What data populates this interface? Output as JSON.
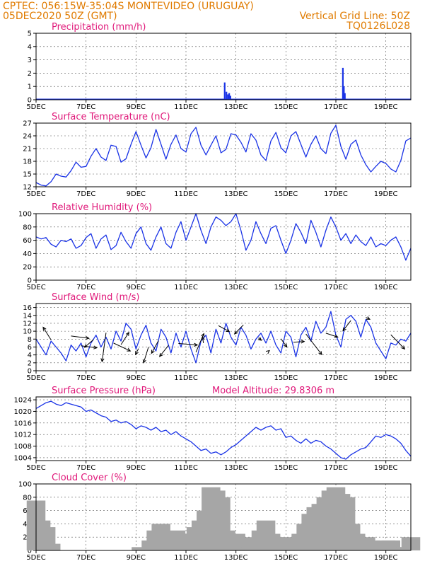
{
  "header": {
    "line1_left": "CPTEC:   056:15W-35:04S   MONTEVIDEO (URUGUAY)",
    "line2_left": "05DEC2020 50Z (GMT)",
    "line2_right": "Vertical Grid Line: 50Z",
    "line3_right": "TQ0126L028"
  },
  "colors": {
    "header": "#e07b00",
    "title": "#e0197a",
    "line": "#1a33e6",
    "bar": "#1a33e6",
    "cloud": "#a6a6a6"
  },
  "chart_data": [
    {
      "type": "bar",
      "title": "Precipitation (mm/h)",
      "ylim": [
        0,
        5
      ],
      "yticks": [
        0,
        1,
        2,
        3,
        4,
        5
      ],
      "x": [
        12.55,
        12.62,
        12.68,
        12.73,
        12.78,
        17.28,
        17.32,
        17.36
      ],
      "values": [
        1.3,
        0.6,
        0.4,
        0.5,
        0.3,
        2.4,
        1.0,
        0.5
      ]
    },
    {
      "type": "line",
      "title": "Surface Temperature (nC)",
      "ylim": [
        12,
        27
      ],
      "yticks": [
        12,
        15,
        18,
        21,
        24,
        27
      ],
      "x": [
        5.0,
        5.2,
        5.4,
        5.6,
        5.8,
        6.0,
        6.2,
        6.4,
        6.6,
        6.8,
        7.0,
        7.2,
        7.4,
        7.6,
        7.8,
        8.0,
        8.2,
        8.4,
        8.6,
        8.8,
        9.0,
        9.2,
        9.4,
        9.6,
        9.8,
        10.0,
        10.2,
        10.4,
        10.6,
        10.8,
        11.0,
        11.2,
        11.4,
        11.6,
        11.8,
        12.0,
        12.2,
        12.4,
        12.6,
        12.8,
        13.0,
        13.2,
        13.4,
        13.6,
        13.8,
        14.0,
        14.2,
        14.4,
        14.6,
        14.8,
        15.0,
        15.2,
        15.4,
        15.6,
        15.8,
        16.0,
        16.2,
        16.4,
        16.6,
        16.8,
        17.0,
        17.2,
        17.4,
        17.6,
        17.8,
        18.0,
        18.2,
        18.4,
        18.6,
        18.8,
        19.0,
        19.2,
        19.4,
        19.6,
        19.8,
        20.0
      ],
      "values": [
        13.0,
        12.4,
        12.2,
        13.2,
        15.0,
        14.5,
        14.3,
        15.8,
        17.8,
        16.6,
        16.8,
        19.2,
        21.0,
        19.0,
        18.2,
        21.8,
        21.5,
        17.8,
        18.6,
        22.0,
        25.0,
        21.8,
        18.8,
        21.2,
        25.5,
        22.0,
        18.5,
        22.0,
        24.2,
        21.0,
        20.2,
        24.5,
        26.0,
        21.8,
        19.5,
        21.8,
        24.0,
        20.0,
        20.8,
        24.5,
        24.2,
        22.5,
        20.2,
        24.5,
        23.0,
        19.5,
        18.2,
        22.8,
        24.8,
        21.2,
        20.0,
        24.0,
        25.0,
        22.0,
        19.0,
        22.0,
        24.0,
        21.0,
        19.8,
        24.6,
        26.5,
        21.5,
        18.5,
        22.0,
        23.0,
        19.5,
        17.2,
        15.5,
        16.8,
        18.0,
        17.5,
        16.2,
        15.5,
        18.2,
        22.8,
        23.5
      ]
    },
    {
      "type": "line",
      "title": "Relative Humidity (%)",
      "ylim": [
        0,
        100
      ],
      "yticks": [
        0,
        20,
        40,
        60,
        80,
        100
      ],
      "x": [
        5.0,
        5.2,
        5.4,
        5.6,
        5.8,
        6.0,
        6.2,
        6.4,
        6.6,
        6.8,
        7.0,
        7.2,
        7.4,
        7.6,
        7.8,
        8.0,
        8.2,
        8.4,
        8.6,
        8.8,
        9.0,
        9.2,
        9.4,
        9.6,
        9.8,
        10.0,
        10.2,
        10.4,
        10.6,
        10.8,
        11.0,
        11.2,
        11.4,
        11.6,
        11.8,
        12.0,
        12.2,
        12.4,
        12.6,
        12.8,
        13.0,
        13.2,
        13.4,
        13.6,
        13.8,
        14.0,
        14.2,
        14.4,
        14.6,
        14.8,
        15.0,
        15.2,
        15.4,
        15.6,
        15.8,
        16.0,
        16.2,
        16.4,
        16.6,
        16.8,
        17.0,
        17.2,
        17.4,
        17.6,
        17.8,
        18.0,
        18.2,
        18.4,
        18.6,
        18.8,
        19.0,
        19.2,
        19.4,
        19.6,
        19.8,
        20.0
      ],
      "values": [
        65,
        62,
        64,
        54,
        50,
        60,
        58,
        62,
        48,
        52,
        64,
        70,
        48,
        62,
        68,
        46,
        52,
        72,
        58,
        48,
        70,
        80,
        55,
        45,
        65,
        80,
        55,
        48,
        72,
        88,
        60,
        80,
        100,
        75,
        55,
        80,
        95,
        90,
        82,
        88,
        100,
        75,
        45,
        60,
        88,
        70,
        55,
        78,
        82,
        60,
        40,
        60,
        85,
        72,
        55,
        90,
        72,
        50,
        75,
        95,
        80,
        60,
        70,
        55,
        68,
        58,
        52,
        65,
        50,
        55,
        52,
        60,
        65,
        50,
        30,
        48
      ]
    },
    {
      "type": "line",
      "title": "Surface Wind (m/s)",
      "ylim": [
        0,
        17
      ],
      "yticks": [
        0,
        2,
        4,
        6,
        8,
        10,
        12,
        14,
        16
      ],
      "x": [
        5.0,
        5.2,
        5.4,
        5.6,
        5.8,
        6.0,
        6.2,
        6.4,
        6.6,
        6.8,
        7.0,
        7.2,
        7.4,
        7.6,
        7.8,
        8.0,
        8.2,
        8.4,
        8.6,
        8.8,
        9.0,
        9.2,
        9.4,
        9.6,
        9.8,
        10.0,
        10.2,
        10.4,
        10.6,
        10.8,
        11.0,
        11.2,
        11.4,
        11.6,
        11.8,
        12.0,
        12.2,
        12.4,
        12.6,
        12.8,
        13.0,
        13.2,
        13.4,
        13.6,
        13.8,
        14.0,
        14.2,
        14.4,
        14.6,
        14.8,
        15.0,
        15.2,
        15.4,
        15.6,
        15.8,
        16.0,
        16.2,
        16.4,
        16.6,
        16.8,
        17.0,
        17.2,
        17.4,
        17.6,
        17.8,
        18.0,
        18.2,
        18.4,
        18.6,
        18.8,
        19.0,
        19.2,
        19.4,
        19.6,
        19.8,
        20.0
      ],
      "values": [
        8.0,
        6.0,
        4.0,
        7.5,
        6.0,
        4.5,
        2.5,
        6.5,
        5.0,
        7.0,
        3.5,
        7.0,
        9.0,
        6.0,
        8.5,
        5.5,
        10.0,
        7.5,
        12.0,
        10.5,
        5.5,
        9.0,
        11.5,
        7.0,
        5.0,
        10.5,
        8.5,
        4.5,
        9.5,
        6.0,
        10.0,
        5.5,
        2.0,
        7.5,
        9.0,
        4.5,
        10.5,
        7.0,
        12.0,
        8.5,
        6.5,
        11.0,
        9.0,
        5.5,
        8.0,
        9.5,
        7.0,
        10.0,
        6.5,
        4.5,
        10.0,
        8.5,
        3.5,
        9.0,
        11.0,
        7.5,
        12.5,
        9.5,
        11.0,
        15.0,
        9.0,
        6.0,
        13.0,
        14.0,
        12.5,
        8.5,
        13.0,
        11.0,
        7.0,
        5.0,
        3.0,
        7.0,
        6.5,
        8.0,
        7.5,
        9.5
      ]
    },
    {
      "type": "line",
      "title": "Surface Pressure (hPa)",
      "annotation": "Model Altitude: 29.8306  m",
      "ylim": [
        1003,
        1025
      ],
      "yticks": [
        1004,
        1008,
        1012,
        1016,
        1020,
        1024
      ],
      "x": [
        5.0,
        5.2,
        5.4,
        5.6,
        5.8,
        6.0,
        6.2,
        6.4,
        6.6,
        6.8,
        7.0,
        7.2,
        7.4,
        7.6,
        7.8,
        8.0,
        8.2,
        8.4,
        8.6,
        8.8,
        9.0,
        9.2,
        9.4,
        9.6,
        9.8,
        10.0,
        10.2,
        10.4,
        10.6,
        10.8,
        11.0,
        11.2,
        11.4,
        11.6,
        11.8,
        12.0,
        12.2,
        12.4,
        12.6,
        12.8,
        13.0,
        13.2,
        13.4,
        13.6,
        13.8,
        14.0,
        14.2,
        14.4,
        14.6,
        14.8,
        15.0,
        15.2,
        15.4,
        15.6,
        15.8,
        16.0,
        16.2,
        16.4,
        16.6,
        16.8,
        17.0,
        17.2,
        17.4,
        17.6,
        17.8,
        18.0,
        18.2,
        18.4,
        18.6,
        18.8,
        19.0,
        19.2,
        19.4,
        19.6,
        19.8,
        20.0
      ],
      "values": [
        1021.0,
        1022.0,
        1023.0,
        1023.5,
        1022.5,
        1022.0,
        1023.0,
        1022.5,
        1022.0,
        1021.5,
        1020.0,
        1020.5,
        1019.5,
        1018.5,
        1018.0,
        1016.5,
        1017.0,
        1016.0,
        1016.5,
        1015.5,
        1014.0,
        1015.0,
        1014.5,
        1013.5,
        1014.5,
        1013.0,
        1013.5,
        1012.0,
        1013.0,
        1011.5,
        1010.5,
        1009.5,
        1008.0,
        1006.5,
        1007.0,
        1005.5,
        1006.0,
        1005.0,
        1006.0,
        1007.5,
        1008.5,
        1010.0,
        1011.5,
        1013.0,
        1014.5,
        1013.5,
        1014.5,
        1015.0,
        1013.5,
        1014.0,
        1011.0,
        1011.5,
        1010.0,
        1009.0,
        1010.5,
        1009.0,
        1010.0,
        1009.5,
        1008.0,
        1007.0,
        1005.5,
        1004.0,
        1003.5,
        1005.0,
        1006.0,
        1007.0,
        1007.5,
        1009.5,
        1011.5,
        1011.0,
        1012.0,
        1011.5,
        1010.5,
        1009.0,
        1006.5,
        1004.5
      ]
    },
    {
      "type": "bar",
      "title": "Cloud Cover (%)",
      "ylim": [
        0,
        100
      ],
      "yticks": [
        0,
        20,
        40,
        60,
        80,
        100
      ],
      "x": [
        5.0,
        5.2,
        5.4,
        5.6,
        5.8,
        6.0,
        6.2,
        6.4,
        6.6,
        6.8,
        7.0,
        7.2,
        7.4,
        7.6,
        7.8,
        8.0,
        8.2,
        8.4,
        8.6,
        8.8,
        9.0,
        9.2,
        9.4,
        9.6,
        9.8,
        10.0,
        10.2,
        10.4,
        10.6,
        10.8,
        11.0,
        11.2,
        11.4,
        11.6,
        11.8,
        12.0,
        12.2,
        12.4,
        12.6,
        12.8,
        13.0,
        13.2,
        13.4,
        13.6,
        13.8,
        14.0,
        14.2,
        14.4,
        14.6,
        14.8,
        15.0,
        15.2,
        15.4,
        15.6,
        15.8,
        16.0,
        16.2,
        16.4,
        16.6,
        16.8,
        17.0,
        17.2,
        17.4,
        17.6,
        17.8,
        18.0,
        18.2,
        18.4,
        18.6,
        18.8,
        19.0,
        19.2,
        19.4,
        19.6,
        19.8,
        20.0
      ],
      "values": [
        75,
        45,
        35,
        10,
        0,
        0,
        0,
        0,
        0,
        0,
        0,
        0,
        0,
        0,
        0,
        0,
        0,
        0,
        0,
        0,
        0,
        5,
        0,
        15,
        30,
        40,
        25,
        0,
        30,
        20,
        10,
        25,
        35,
        45,
        60,
        95,
        90,
        80,
        30,
        20,
        25,
        10,
        5,
        20,
        15,
        30,
        45,
        25,
        20,
        5,
        20,
        15,
        10,
        25,
        40,
        55,
        65,
        70,
        80,
        90,
        95,
        85,
        80,
        40,
        25,
        10,
        20,
        15,
        5,
        10,
        15,
        15,
        5,
        0,
        5,
        20
      ]
    }
  ],
  "x_axis": {
    "min": 5,
    "max": 20,
    "ticks": [
      5,
      7,
      9,
      11,
      13,
      15,
      17,
      19
    ],
    "labels": [
      "5DEC",
      "7DEC",
      "9DEC",
      "11DEC",
      "13DEC",
      "15DEC",
      "17DEC",
      "19DEC"
    ]
  },
  "wind_vectors": [
    [
      5.6,
      7.8,
      11.0
    ],
    [
      6.4,
      8.8,
      8.2
    ],
    [
      6.8,
      6.3,
      5.8
    ],
    [
      7.3,
      7.9,
      5.9
    ],
    [
      7.8,
      9.6,
      2.3
    ],
    [
      8.1,
      7.0,
      5.0
    ],
    [
      8.4,
      6.6,
      9.7
    ],
    [
      9.1,
      5.6,
      4.1
    ],
    [
      9.5,
      6.0,
      2.0
    ],
    [
      9.9,
      7.6,
      4.4
    ],
    [
      10.3,
      6.4,
      3.6
    ],
    [
      10.7,
      6.9,
      6.5
    ],
    [
      11.4,
      4.7,
      9.4
    ],
    [
      11.7,
      7.0,
      8.6
    ],
    [
      12.3,
      11.4,
      9.9
    ],
    [
      13.3,
      11.6,
      9.3
    ],
    [
      13.9,
      8.3,
      7.7
    ],
    [
      14.3,
      4.9,
      5.1
    ],
    [
      14.8,
      8.1,
      6.0
    ],
    [
      15.3,
      7.2,
      7.4
    ],
    [
      15.8,
      9.3,
      4.1
    ],
    [
      16.6,
      9.5,
      8.5
    ],
    [
      17.6,
      12.7,
      10.1
    ],
    [
      18.2,
      13.5,
      13.0
    ],
    [
      19.2,
      9.1,
      5.5
    ]
  ]
}
